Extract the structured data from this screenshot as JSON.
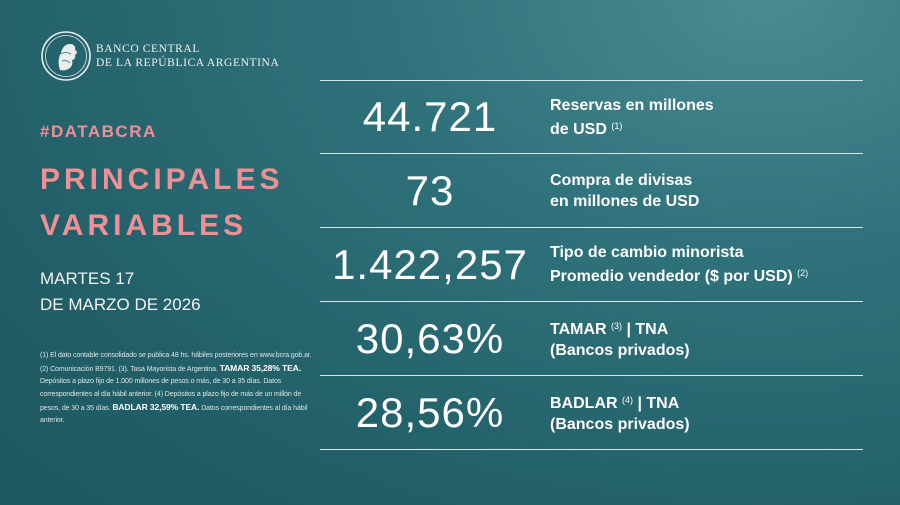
{
  "header": {
    "bank_name_line1": "BANCO CENTRAL",
    "bank_name_line2": "DE LA REPÚBLICA ARGENTINA"
  },
  "left": {
    "hashtag": "#DATABCRA",
    "title_line1": "PRINCIPALES",
    "title_line2": "VARIABLES",
    "date_line1": "MARTES 17",
    "date_line2": "DE MARZO DE 2026"
  },
  "notes": {
    "part1": "(1) El dato contable consolidado se publica 48 hs. hábiles posteriores en www.bcra.gob.ar. (2) Comunicación B9791. (3). Tasa Mayorista de Argentina.",
    "tamar_tea": "TAMAR 35,28% TEA.",
    "part2": "Depósitos a plazo fijo de 1.000 millones de pesos o más, de 30 a 35 días. Datos correspondientes al día hábil anterior. (4) Depósitos a plazo fijo de más de un millón de pesos, de 30 a 35 días.",
    "badlar_tea": "BADLAR 32,59% TEA.",
    "part3": "Datos correspondientes al día hábil anterior."
  },
  "rows": [
    {
      "value": "44.721",
      "label_line1": "Reservas en millones",
      "label_line2": "de USD",
      "note": "(1)"
    },
    {
      "value": "73",
      "label_line1": "Compra de divisas",
      "label_line2": "en millones de USD"
    },
    {
      "value": "1.422,257",
      "label_line1": "Tipo de cambio minorista",
      "label_line2": "Promedio vendedor ($ por USD)",
      "note": "(2)"
    },
    {
      "value": "30,63%",
      "label_line1a": "TAMAR",
      "note": "(3)",
      "label_line1b": "| TNA",
      "label_line2": "(Bancos privados)"
    },
    {
      "value": "28,56%",
      "label_line1a": "BADLAR",
      "note": "(4)",
      "label_line1b": "| TNA",
      "label_line2": "(Bancos privados)"
    }
  ]
}
